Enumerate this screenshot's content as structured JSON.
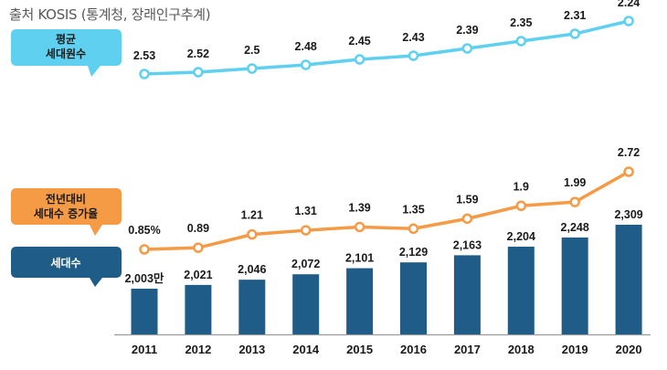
{
  "source_note": "출처 KOSIS (통계청, 장래인구추계)",
  "callouts": {
    "avg_household_members": {
      "line1": "평균",
      "line2": "세대원수",
      "color": "#5fd0ef"
    },
    "household_change_rate": {
      "line1": "전년대비",
      "line2": "세대수 증가율",
      "color": "#f59a45"
    },
    "household_count": {
      "line1": "세대수",
      "color": "#1f5d88"
    }
  },
  "colors": {
    "bar": "#1f5d88",
    "avg_line": "#5fd0ef",
    "rate_line": "#f59a45",
    "baseline": "#9a9a9a"
  },
  "chart_data": {
    "type": "bar",
    "categories": [
      "2011",
      "2012",
      "2013",
      "2014",
      "2015",
      "2016",
      "2017",
      "2018",
      "2019",
      "2020"
    ],
    "series": [
      {
        "name": "세대수",
        "type": "bar",
        "values": [
          2003,
          2021,
          2046,
          2072,
          2101,
          2129,
          2163,
          2204,
          2248,
          2309
        ],
        "labels": [
          "2,003만",
          "2,021",
          "2,046",
          "2,072",
          "2,101",
          "2,129",
          "2,163",
          "2,204",
          "2,248",
          "2,309"
        ]
      },
      {
        "name": "전년대비 세대수 증가율",
        "type": "line",
        "values": [
          0.85,
          0.89,
          1.21,
          1.31,
          1.39,
          1.35,
          1.59,
          1.9,
          1.99,
          2.72
        ],
        "labels": [
          "0.85%",
          "0.89",
          "1.21",
          "1.31",
          "1.39",
          "1.35",
          "1.59",
          "1.9",
          "1.99",
          "2.72"
        ]
      },
      {
        "name": "평균 세대원수",
        "type": "line",
        "values": [
          2.53,
          2.52,
          2.5,
          2.48,
          2.45,
          2.43,
          2.39,
          2.35,
          2.31,
          2.24
        ],
        "labels": [
          "2.53",
          "2.52",
          "2.5",
          "2.48",
          "2.45",
          "2.43",
          "2.39",
          "2.35",
          "2.31",
          "2.24"
        ]
      }
    ],
    "grid": false,
    "legend": "callouts-left"
  }
}
